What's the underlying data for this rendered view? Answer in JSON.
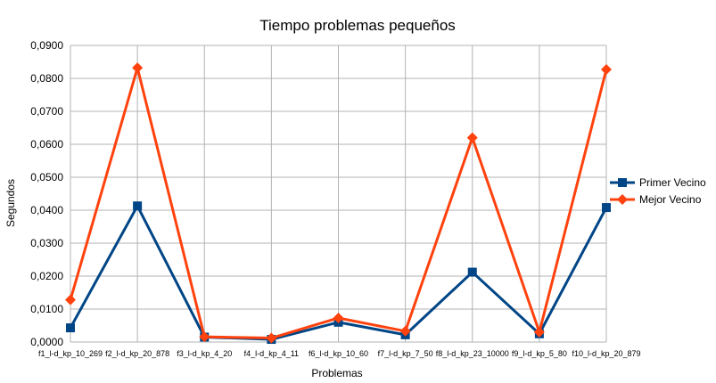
{
  "chart_data": {
    "type": "line",
    "title": "Tiempo problemas pequeños",
    "xlabel": "Problemas",
    "ylabel": "Segundos",
    "ylim": [
      0,
      0.09
    ],
    "yticks": [
      "0,0000",
      "0,0100",
      "0,0200",
      "0,0300",
      "0,0400",
      "0,0500",
      "0,0600",
      "0,0700",
      "0,0800",
      "0,0900"
    ],
    "categories": [
      "f1_l-d_kp_10_269",
      "f2_l-d_kp_20_878",
      "f3_l-d_kp_4_20",
      "f4_l-d_kp_4_11",
      "f6_l-d_kp_10_60",
      "f7_l-d_kp_7_50",
      "f8_l-d_kp_23_10000",
      "f9_l-d_kp_5_80",
      "f10_l-d_kp_20_879"
    ],
    "series": [
      {
        "name": "Primer Vecino",
        "color": "#004586",
        "marker": "square",
        "values": [
          0.0043,
          0.0413,
          0.0015,
          0.0008,
          0.006,
          0.0022,
          0.0212,
          0.0025,
          0.0408
        ]
      },
      {
        "name": "Mejor Vecino",
        "color": "#ff420e",
        "marker": "diamond",
        "values": [
          0.0128,
          0.0832,
          0.0016,
          0.0012,
          0.0073,
          0.0033,
          0.062,
          0.003,
          0.0827
        ]
      }
    ],
    "legend": "right",
    "grid": true
  }
}
